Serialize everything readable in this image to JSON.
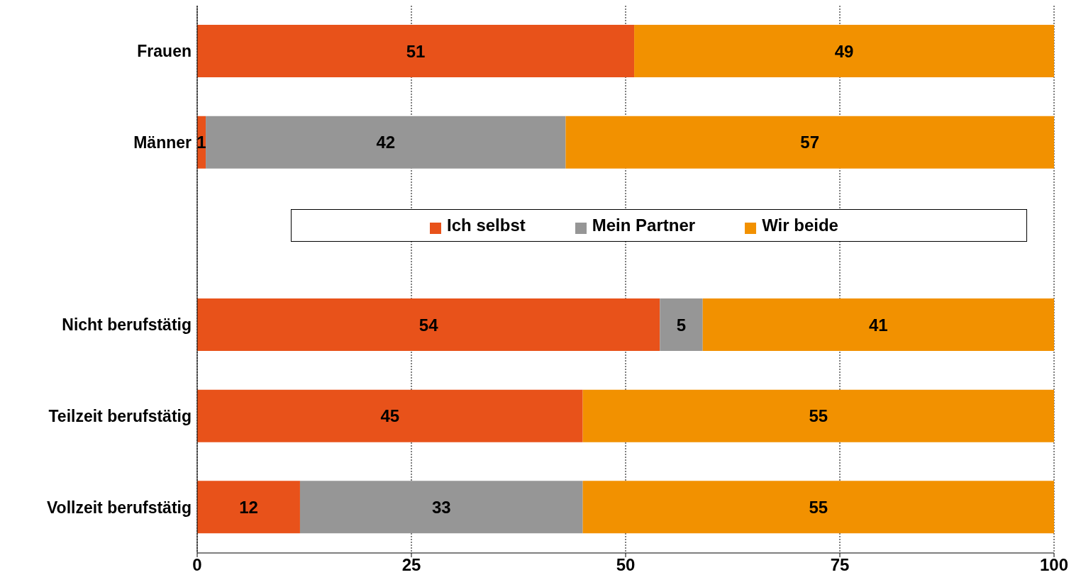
{
  "chart_data": {
    "type": "bar",
    "orientation": "horizontal",
    "stacked": true,
    "categories": [
      "Frauen",
      "Männer",
      null,
      "Nicht berufstätig",
      "Teilzeit berufstätig",
      "Vollzeit berufstätig"
    ],
    "series": [
      {
        "name": "Ich selbst",
        "color": "#e8521a",
        "values": [
          51,
          1,
          null,
          54,
          45,
          12
        ]
      },
      {
        "name": "Mein Partner",
        "color": "#969696",
        "values": [
          null,
          42,
          null,
          5,
          null,
          33
        ]
      },
      {
        "name": "Wir beide",
        "color": "#f29100",
        "values": [
          49,
          57,
          null,
          41,
          55,
          55
        ]
      }
    ],
    "xlim": [
      0,
      100
    ],
    "xticks": [
      0,
      25,
      50,
      75,
      100
    ],
    "grid": "x",
    "legend": "center",
    "data_labels": true
  }
}
